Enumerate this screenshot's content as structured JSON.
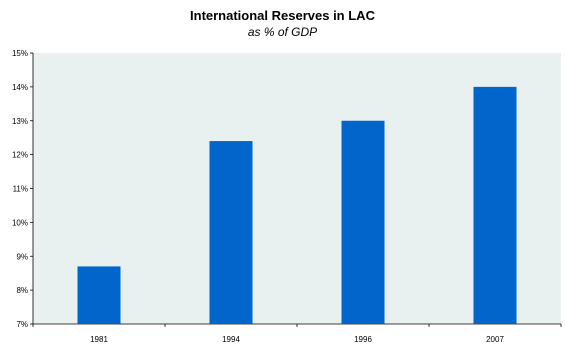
{
  "chart_data": {
    "type": "bar",
    "title": "International Reserves in LAC",
    "subtitle": "as % of GDP",
    "categories": [
      "1981",
      "1994",
      "1996",
      "2007"
    ],
    "values": [
      8.7,
      12.4,
      13.0,
      14.0
    ],
    "ylim": [
      7,
      15
    ],
    "yticks": [
      7,
      8,
      9,
      10,
      11,
      12,
      13,
      14,
      15
    ],
    "ytick_labels": [
      "7%",
      "8%",
      "9%",
      "10%",
      "11%",
      "12%",
      "13%",
      "14%",
      "15%"
    ],
    "xlabel": "",
    "ylabel": "",
    "grid": false,
    "plot_bg_color": "#e8f0f0",
    "bar_color": "#0066cc"
  }
}
